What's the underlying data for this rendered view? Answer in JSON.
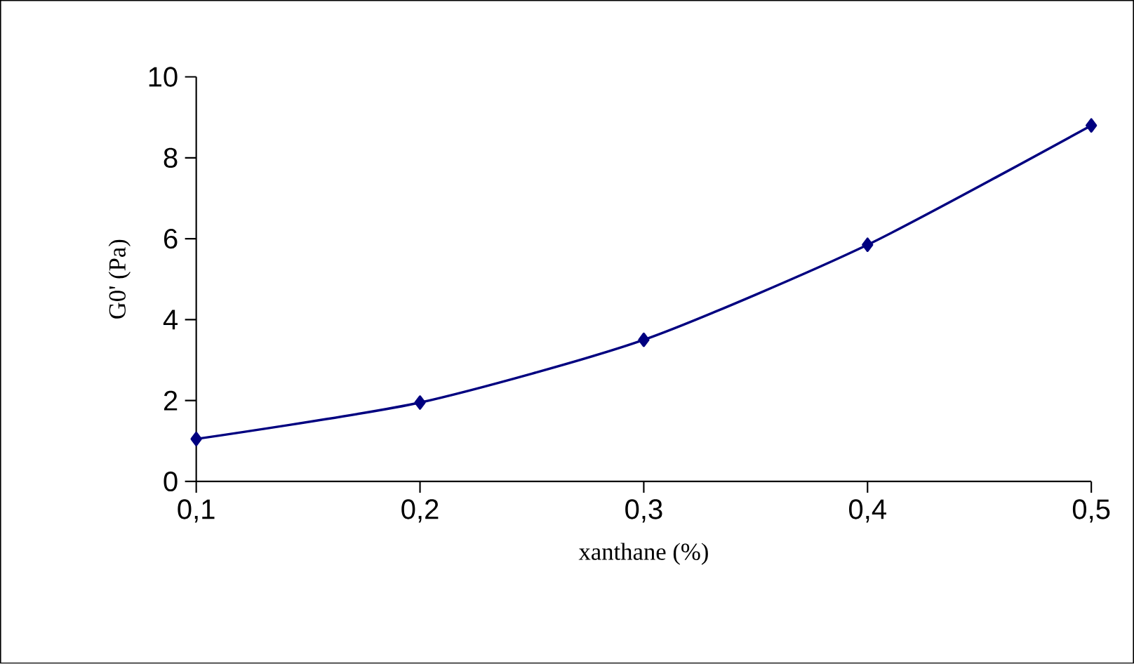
{
  "chart_data": {
    "type": "line",
    "xlabel": "xanthane (%)",
    "ylabel": "G0' (Pa)",
    "x": [
      0.1,
      0.2,
      0.3,
      0.4,
      0.5
    ],
    "series": [
      {
        "color": "#000080",
        "values": [
          1.05,
          1.95,
          3.5,
          5.85,
          8.8
        ]
      }
    ],
    "xlim": [
      0.1,
      0.5
    ],
    "ylim": [
      0,
      10
    ],
    "xticks": [
      {
        "value": 0.1,
        "label": "0,1"
      },
      {
        "value": 0.2,
        "label": "0,2"
      },
      {
        "value": 0.3,
        "label": "0,3"
      },
      {
        "value": 0.4,
        "label": "0,4"
      },
      {
        "value": 0.5,
        "label": "0,5"
      }
    ],
    "yticks": [
      0,
      2,
      4,
      6,
      8,
      10
    ],
    "marker": "diamond",
    "line_style": "solid",
    "grid": false
  }
}
